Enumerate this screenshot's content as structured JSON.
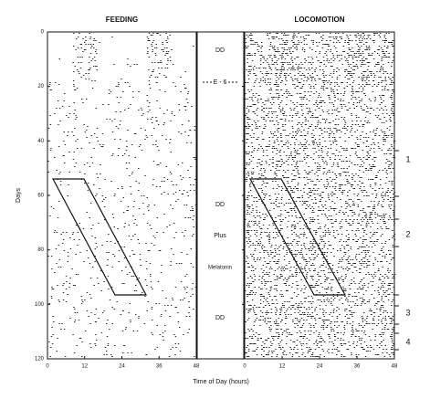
{
  "panels": [
    {
      "title": "FEEDING",
      "xticks": [
        0,
        12,
        24,
        36,
        48
      ]
    },
    {
      "title": "LOCOMOTION",
      "xticks": [
        0,
        12,
        24,
        36,
        48
      ]
    }
  ],
  "xlim": [
    0,
    48
  ],
  "ylim": [
    0,
    120
  ],
  "y_axis": {
    "label": "Days",
    "ticks": [
      0,
      20,
      40,
      60,
      80,
      100,
      120
    ]
  },
  "x_axis_label": "Time of Day (hours)",
  "conditions": [
    "DD",
    "E - 6",
    "DD",
    "Plus",
    "Melatonin",
    "DD"
  ],
  "phases": [
    "1",
    "2",
    "3",
    "4"
  ]
}
